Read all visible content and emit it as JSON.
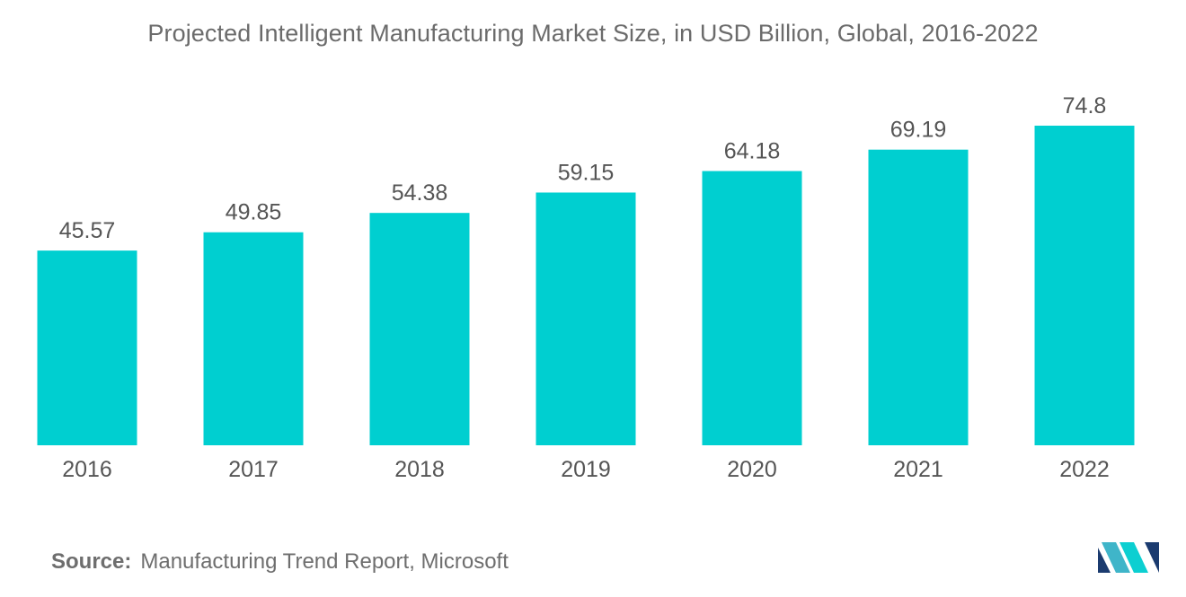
{
  "title": "Projected Intelligent Manufacturing Market Size, in USD Billion, Global, 2016-2022",
  "source": {
    "label": "Source:",
    "text": "Manufacturing Trend Report, Microsoft"
  },
  "logo": {
    "icon": "mordor-intelligence-logo-icon",
    "colors": [
      "#1b3b6f",
      "#3fb5c9",
      "#0ccfd1"
    ]
  },
  "colors": {
    "bar": "#00cfd0",
    "label": "#555555",
    "tick": "#555555"
  },
  "chart_data": {
    "type": "bar",
    "title": "Projected Intelligent Manufacturing Market Size, in USD Billion, Global, 2016-2022",
    "categories": [
      "2016",
      "2017",
      "2018",
      "2019",
      "2020",
      "2021",
      "2022"
    ],
    "values": [
      45.57,
      49.85,
      54.38,
      59.15,
      64.18,
      69.19,
      74.8
    ],
    "value_labels": [
      "45.57",
      "49.85",
      "54.38",
      "59.15",
      "64.18",
      "69.19",
      "74.8"
    ],
    "xlabel": "",
    "ylabel": "",
    "ylim": [
      0,
      79
    ],
    "grid": false,
    "legend": "none",
    "y_axis_visible": false
  }
}
